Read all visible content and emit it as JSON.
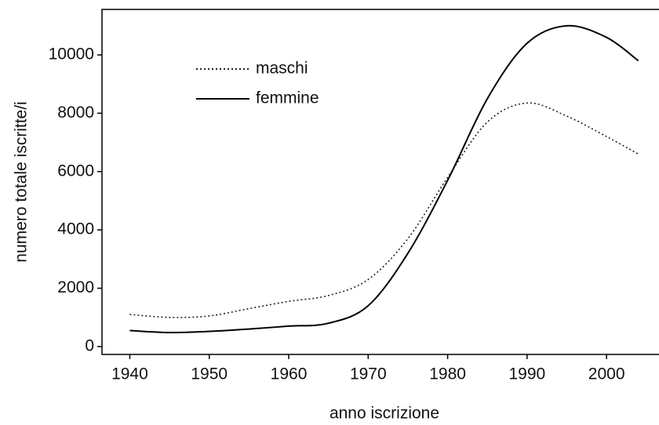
{
  "chart_data": {
    "type": "line",
    "xlabel": "anno iscrizione",
    "ylabel": "numero totale iscritte/i",
    "x": [
      1940,
      1945,
      1950,
      1955,
      1960,
      1965,
      1970,
      1975,
      1980,
      1985,
      1990,
      1995,
      2000,
      2004
    ],
    "series": [
      {
        "name": "maschi",
        "color": "#222222",
        "style": "dotted",
        "values": [
          1100,
          1000,
          1050,
          1300,
          1550,
          1750,
          2300,
          3700,
          5800,
          7700,
          8350,
          7900,
          7200,
          6600
        ]
      },
      {
        "name": "femmine",
        "color": "#000000",
        "style": "solid",
        "values": [
          550,
          480,
          520,
          600,
          700,
          800,
          1400,
          3200,
          5700,
          8500,
          10400,
          11000,
          10600,
          9800
        ]
      }
    ],
    "xlim": [
      1936.5,
      2006.6
    ],
    "xticks": [
      1940,
      1950,
      1960,
      1970,
      1980,
      1990,
      2000
    ],
    "ylim": [
      -270,
      11560
    ],
    "yticks": [
      0,
      2000,
      4000,
      6000,
      8000,
      10000
    ],
    "grid": false,
    "legend": "upper left"
  }
}
